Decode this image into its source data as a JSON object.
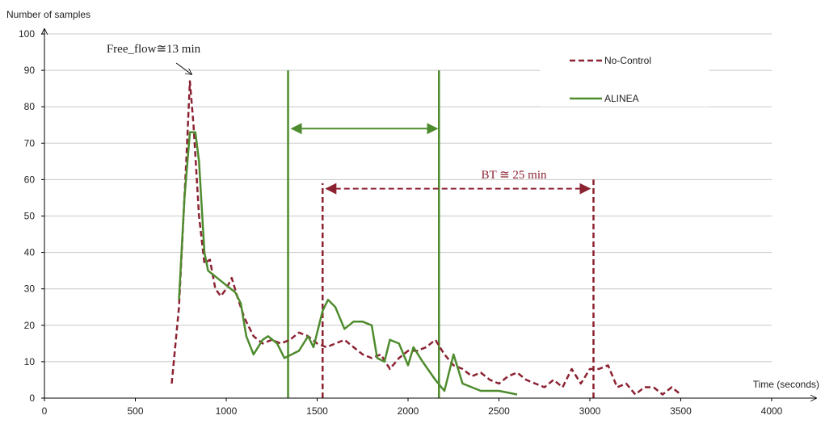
{
  "chart_data": {
    "type": "line",
    "ylabel": "Number of samples",
    "xlabel": "Time (seconds)",
    "xlim": [
      0,
      4000
    ],
    "xticks": [
      0,
      500,
      1000,
      1500,
      2000,
      2500,
      3000,
      3500,
      4000
    ],
    "ylim": [
      0,
      100
    ],
    "yticks": [
      0,
      10,
      20,
      30,
      40,
      50,
      60,
      70,
      80,
      90,
      100
    ],
    "grid": true,
    "legend": "upper right",
    "series": [
      {
        "name": "No-Control",
        "color": "#8b2232",
        "style": "dashed",
        "x": [
          700,
          740,
          780,
          800,
          820,
          850,
          880,
          910,
          940,
          970,
          1000,
          1030,
          1060,
          1100,
          1150,
          1200,
          1250,
          1300,
          1350,
          1400,
          1450,
          1500,
          1550,
          1600,
          1650,
          1700,
          1750,
          1800,
          1850,
          1900,
          1950,
          2000,
          2050,
          2100,
          2150,
          2200,
          2250,
          2300,
          2350,
          2400,
          2450,
          2500,
          2550,
          2600,
          2650,
          2700,
          2750,
          2800,
          2850,
          2900,
          2950,
          3000,
          3050,
          3100,
          3150,
          3200,
          3250,
          3300,
          3350,
          3400,
          3450,
          3500
        ],
        "values": [
          4,
          25,
          65,
          87,
          75,
          50,
          37,
          38,
          30,
          28,
          30,
          33,
          28,
          22,
          17,
          15,
          16,
          15,
          16,
          18,
          17,
          15,
          14,
          15,
          16,
          14,
          12,
          11,
          12,
          8,
          11,
          13,
          13,
          14,
          16,
          12,
          9,
          8,
          6,
          7,
          5,
          4,
          6,
          7,
          5,
          4,
          3,
          5,
          3,
          8,
          4,
          8,
          8,
          9,
          3,
          4,
          1,
          3,
          3,
          1,
          3,
          1
        ]
      },
      {
        "name": "ALINEA",
        "color": "#4e8b2e",
        "style": "solid",
        "x": [
          740,
          770,
          800,
          830,
          850,
          880,
          900,
          950,
          1000,
          1050,
          1080,
          1110,
          1150,
          1200,
          1230,
          1280,
          1320,
          1360,
          1400,
          1450,
          1480,
          1530,
          1560,
          1600,
          1650,
          1700,
          1750,
          1800,
          1830,
          1870,
          1900,
          1950,
          2000,
          2030,
          2080,
          2150,
          2200,
          2250,
          2300,
          2350,
          2400,
          2500,
          2600
        ],
        "values": [
          27,
          55,
          73,
          73,
          65,
          40,
          35,
          33,
          31,
          29,
          26,
          17,
          12,
          16,
          17,
          15,
          11,
          12,
          13,
          17,
          14,
          24,
          27,
          25,
          19,
          21,
          21,
          20,
          11,
          10,
          16,
          15,
          9,
          14,
          10,
          5,
          2,
          12,
          4,
          3,
          2,
          2,
          1
        ]
      }
    ],
    "reference_lines": [
      {
        "x": 1340,
        "y": 90,
        "color": "#4e8b2e",
        "style": "solid"
      },
      {
        "x": 2170,
        "y": 90,
        "color": "#4e8b2e",
        "style": "solid"
      },
      {
        "x": 1530,
        "y": 59,
        "color": "#8b2232",
        "style": "dashed"
      },
      {
        "x": 3020,
        "y": 60,
        "color": "#8b2232",
        "style": "dashed"
      }
    ],
    "arrows": [
      {
        "x": [
          1360,
          2160
        ],
        "y": 74,
        "color": "#4e8b2e",
        "style": "solid"
      },
      {
        "x": [
          1550,
          3000
        ],
        "y": 57.5,
        "color": "#8b2232",
        "style": "dashed"
      }
    ],
    "annotations": [
      "Free_flow≅13 min",
      "BT ≅ 25 min"
    ]
  }
}
